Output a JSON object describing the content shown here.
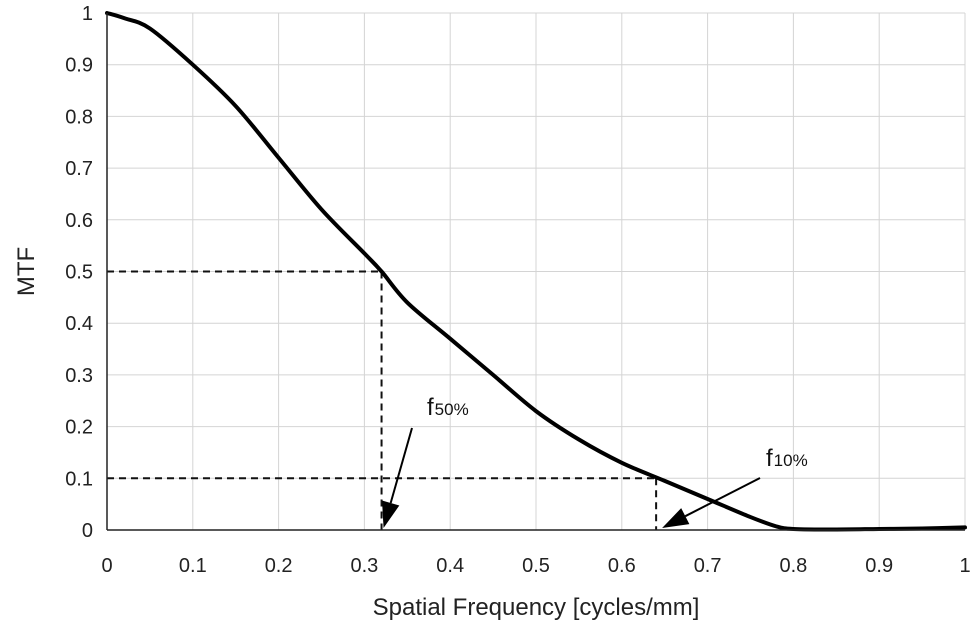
{
  "chart_data": {
    "type": "line",
    "title": "",
    "xlabel": "Spatial Frequency [cycles/mm]",
    "ylabel": "MTF",
    "xlim": [
      0,
      1
    ],
    "ylim": [
      0,
      1
    ],
    "grid": true,
    "xticks": [
      "0",
      "0.1",
      "0.2",
      "0.3",
      "0.4",
      "0.5",
      "0.6",
      "0.7",
      "0.8",
      "0.9",
      "1"
    ],
    "yticks": [
      "0",
      "0.1",
      "0.2",
      "0.3",
      "0.4",
      "0.5",
      "0.6",
      "0.7",
      "0.8",
      "0.9",
      "1"
    ],
    "series": [
      {
        "name": "MTF",
        "color": "#000000",
        "x": [
          0,
          0.02,
          0.05,
          0.1,
          0.15,
          0.2,
          0.25,
          0.3,
          0.32,
          0.35,
          0.4,
          0.45,
          0.5,
          0.55,
          0.6,
          0.65,
          0.7,
          0.75,
          0.78,
          0.8,
          0.85,
          0.9,
          0.95,
          1.0
        ],
        "y": [
          1.0,
          0.99,
          0.97,
          0.9,
          0.82,
          0.72,
          0.62,
          0.535,
          0.5,
          0.44,
          0.37,
          0.3,
          0.23,
          0.175,
          0.13,
          0.095,
          0.06,
          0.025,
          0.007,
          0.002,
          0.001,
          0.002,
          0.003,
          0.005
        ]
      }
    ],
    "annotations": [
      {
        "label": "f",
        "subscript": "50%",
        "x": 0.32,
        "y": 0.5
      },
      {
        "label": "f",
        "subscript": "10%",
        "x": 0.64,
        "y": 0.1
      }
    ]
  }
}
